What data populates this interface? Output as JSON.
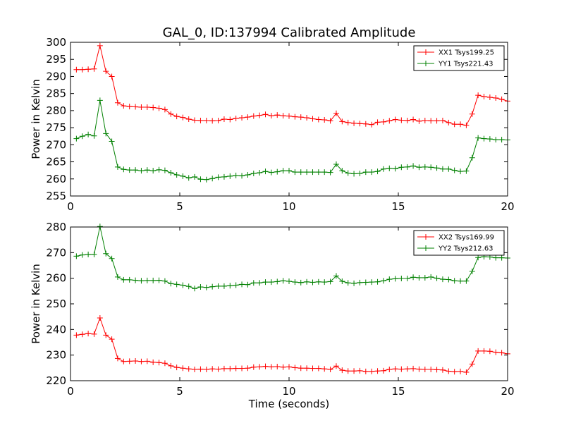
{
  "chart_data": [
    {
      "type": "line",
      "title": "GAL_0, ID:137994 Calibrated Amplitude",
      "xlabel": "",
      "ylabel": "Power in Kelvin",
      "xlim": [
        0,
        20
      ],
      "ylim": [
        255,
        300
      ],
      "xticks": [
        0,
        5,
        10,
        15,
        20
      ],
      "yticks": [
        255,
        260,
        265,
        270,
        275,
        280,
        285,
        290,
        295,
        300
      ],
      "legend_position": "top-right",
      "x": [
        0.27,
        0.54,
        0.81,
        1.08,
        1.35,
        1.62,
        1.89,
        2.16,
        2.43,
        2.7,
        2.97,
        3.24,
        3.51,
        3.78,
        4.05,
        4.32,
        4.59,
        4.86,
        5.14,
        5.41,
        5.68,
        5.95,
        6.22,
        6.49,
        6.76,
        7.03,
        7.3,
        7.57,
        7.84,
        8.11,
        8.38,
        8.65,
        8.92,
        9.19,
        9.46,
        9.73,
        10.0,
        10.27,
        10.54,
        10.81,
        11.08,
        11.35,
        11.62,
        11.89,
        12.16,
        12.43,
        12.7,
        12.97,
        13.24,
        13.51,
        13.78,
        14.05,
        14.32,
        14.59,
        14.86,
        15.14,
        15.41,
        15.68,
        15.95,
        16.22,
        16.49,
        16.76,
        17.03,
        17.3,
        17.57,
        17.84,
        18.11,
        18.38,
        18.65,
        18.92,
        19.19,
        19.46,
        19.73,
        20.0
      ],
      "series": [
        {
          "name": "XX1 Tsys199.25",
          "color": "#ff0000",
          "values": [
            292.0,
            292.0,
            292.1,
            292.2,
            299.0,
            291.5,
            290.0,
            282.3,
            281.4,
            281.2,
            281.1,
            281.0,
            281.0,
            280.9,
            280.7,
            280.3,
            279.0,
            278.3,
            278.0,
            277.5,
            277.2,
            277.1,
            277.1,
            277.0,
            277.1,
            277.5,
            277.4,
            277.7,
            277.9,
            278.1,
            278.4,
            278.6,
            278.9,
            278.5,
            278.7,
            278.5,
            278.4,
            278.2,
            278.1,
            277.9,
            277.6,
            277.4,
            277.3,
            277.0,
            279.2,
            276.8,
            276.5,
            276.3,
            276.2,
            276.1,
            275.9,
            276.6,
            276.7,
            277.0,
            277.4,
            277.2,
            277.1,
            277.4,
            276.9,
            277.1,
            277.0,
            277.0,
            277.1,
            276.5,
            276.0,
            276.0,
            275.7,
            279.0,
            284.5,
            284.1,
            283.9,
            283.7,
            283.3,
            282.8
          ]
        },
        {
          "name": "YY1 Tsys221.43",
          "color": "#008000",
          "values": [
            271.8,
            272.5,
            273.0,
            272.6,
            283.0,
            273.3,
            271.0,
            263.5,
            262.8,
            262.6,
            262.6,
            262.4,
            262.6,
            262.4,
            262.7,
            262.5,
            261.8,
            261.2,
            260.8,
            260.3,
            260.6,
            259.9,
            259.8,
            260.1,
            260.5,
            260.6,
            260.8,
            261.0,
            260.9,
            261.2,
            261.6,
            261.8,
            262.2,
            261.9,
            262.1,
            262.4,
            262.4,
            262.0,
            262.0,
            262.0,
            262.0,
            262.0,
            262.0,
            261.9,
            264.3,
            262.4,
            261.7,
            261.5,
            261.6,
            262.0,
            262.0,
            262.2,
            262.9,
            263.1,
            263.0,
            263.4,
            263.5,
            263.8,
            263.4,
            263.5,
            263.4,
            263.2,
            262.9,
            262.9,
            262.5,
            262.2,
            262.3,
            266.2,
            272.0,
            271.8,
            271.7,
            271.5,
            271.5,
            271.4
          ]
        }
      ]
    },
    {
      "type": "line",
      "title": "",
      "xlabel": "Time (seconds)",
      "ylabel": "Power in Kelvin",
      "xlim": [
        0,
        20
      ],
      "ylim": [
        220,
        280
      ],
      "xticks": [
        0,
        5,
        10,
        15,
        20
      ],
      "yticks": [
        220,
        230,
        240,
        250,
        260,
        270,
        280
      ],
      "legend_position": "top-right",
      "x": [
        0.27,
        0.54,
        0.81,
        1.08,
        1.35,
        1.62,
        1.89,
        2.16,
        2.43,
        2.7,
        2.97,
        3.24,
        3.51,
        3.78,
        4.05,
        4.32,
        4.59,
        4.86,
        5.14,
        5.41,
        5.68,
        5.95,
        6.22,
        6.49,
        6.76,
        7.03,
        7.3,
        7.57,
        7.84,
        8.11,
        8.38,
        8.65,
        8.92,
        9.19,
        9.46,
        9.73,
        10.0,
        10.27,
        10.54,
        10.81,
        11.08,
        11.35,
        11.62,
        11.89,
        12.16,
        12.43,
        12.7,
        12.97,
        13.24,
        13.51,
        13.78,
        14.05,
        14.32,
        14.59,
        14.86,
        15.14,
        15.41,
        15.68,
        15.95,
        16.22,
        16.49,
        16.76,
        17.03,
        17.3,
        17.57,
        17.84,
        18.11,
        18.38,
        18.65,
        18.92,
        19.19,
        19.46,
        19.73,
        20.0
      ],
      "series": [
        {
          "name": "XX2 Tsys169.99",
          "color": "#ff0000",
          "values": [
            237.8,
            238.1,
            238.4,
            238.2,
            244.5,
            237.8,
            236.2,
            228.7,
            227.5,
            227.6,
            227.7,
            227.5,
            227.6,
            227.2,
            227.1,
            226.8,
            225.8,
            225.2,
            224.9,
            224.6,
            224.4,
            224.5,
            224.4,
            224.6,
            224.5,
            224.7,
            224.7,
            224.8,
            224.8,
            224.9,
            225.3,
            225.4,
            225.6,
            225.4,
            225.5,
            225.3,
            225.4,
            225.1,
            224.9,
            224.9,
            224.8,
            224.8,
            224.6,
            224.4,
            225.7,
            224.1,
            223.8,
            223.8,
            223.9,
            223.6,
            223.6,
            223.8,
            223.9,
            224.4,
            224.6,
            224.5,
            224.6,
            224.7,
            224.5,
            224.4,
            224.4,
            224.3,
            224.2,
            223.7,
            223.5,
            223.6,
            223.3,
            226.5,
            231.6,
            231.6,
            231.5,
            231.1,
            230.9,
            230.5
          ]
        },
        {
          "name": "YY2 Tsys212.63",
          "color": "#008000",
          "values": [
            268.6,
            269.1,
            269.3,
            269.3,
            280.2,
            269.6,
            267.7,
            260.5,
            259.4,
            259.4,
            259.2,
            259.0,
            259.1,
            259.1,
            259.2,
            258.9,
            257.9,
            257.6,
            257.3,
            256.8,
            256.0,
            256.6,
            256.4,
            256.7,
            256.9,
            256.9,
            257.1,
            257.3,
            257.6,
            257.5,
            258.2,
            258.2,
            258.5,
            258.5,
            258.7,
            259.0,
            258.8,
            258.5,
            258.3,
            258.6,
            258.4,
            258.6,
            258.5,
            258.7,
            260.9,
            258.8,
            258.2,
            258.0,
            258.3,
            258.4,
            258.5,
            258.6,
            259.0,
            259.6,
            259.8,
            259.9,
            259.9,
            260.4,
            260.2,
            260.2,
            260.5,
            260.0,
            259.6,
            259.5,
            259.0,
            258.9,
            258.9,
            262.7,
            268.1,
            268.4,
            268.3,
            268.0,
            268.0,
            267.9
          ]
        }
      ]
    }
  ]
}
